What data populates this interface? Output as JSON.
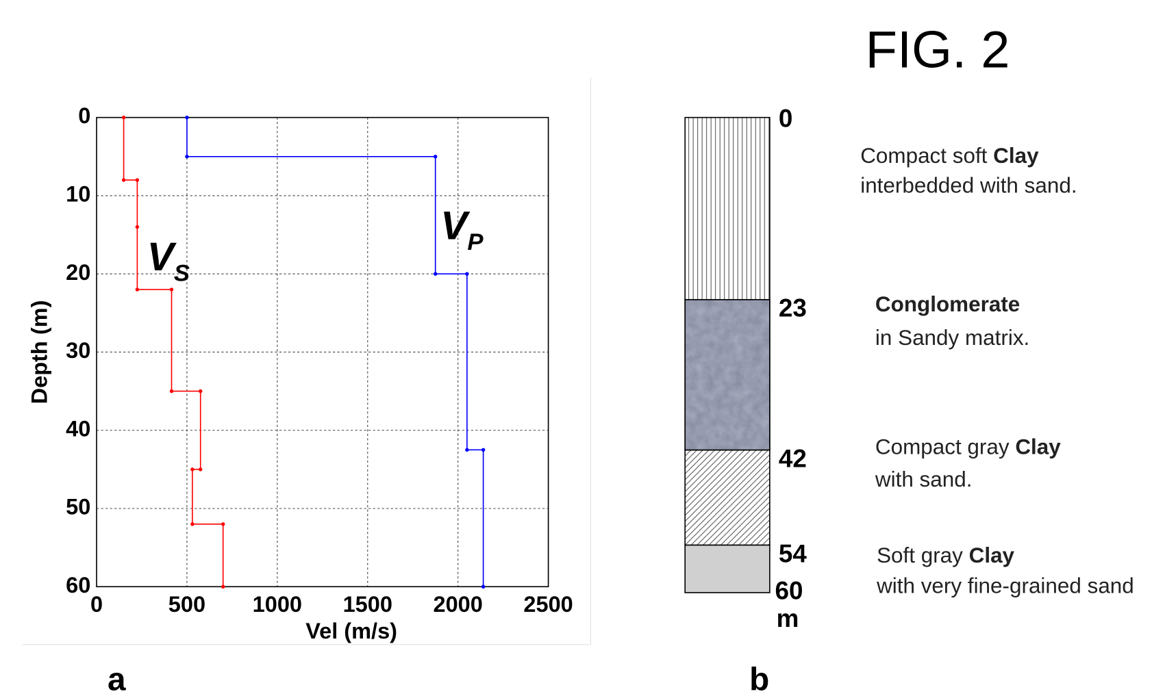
{
  "title": "FIG. 2",
  "panel_labels": [
    "a",
    "b"
  ],
  "chart_data": {
    "type": "line",
    "xlabel": "Vel (m/s)",
    "ylabel": "Depth (m)",
    "xlim": [
      0,
      2500
    ],
    "xticks": [
      0,
      500,
      1000,
      1500,
      2000,
      2500
    ],
    "ylim": [
      0,
      60
    ],
    "yticks": [
      0,
      10,
      20,
      30,
      40,
      50,
      60
    ],
    "y_inverted": true,
    "grid": true,
    "series": [
      {
        "name": "V",
        "subscript": "S",
        "color": "#ff0000",
        "x": [
          150,
          150,
          225,
          225,
          225,
          415,
          415,
          575,
          575,
          530,
          530,
          700,
          700
        ],
        "y": [
          0,
          8,
          8,
          14,
          22,
          22,
          35,
          35,
          45,
          45,
          52,
          52,
          60
        ]
      },
      {
        "name": "V",
        "subscript": "P",
        "color": "#0000ff",
        "x": [
          500,
          500,
          1875,
          1875,
          2050,
          2050,
          2140,
          2140
        ],
        "y": [
          0,
          5,
          5,
          20,
          20,
          42.5,
          42.5,
          60
        ]
      }
    ]
  },
  "column": {
    "unit": "m",
    "bottom": 60,
    "layers": [
      {
        "top": 0,
        "lines": [
          [
            {
              "text": "Compact soft ",
              "bold": false
            },
            {
              "text": "Clay",
              "bold": true
            }
          ],
          [
            {
              "text": "interbedded with sand.",
              "bold": false
            }
          ]
        ]
      },
      {
        "top": 23,
        "lines": [
          [
            {
              "text": "Conglomerate",
              "bold": true
            }
          ],
          [
            {
              "text": "in Sandy matrix.",
              "bold": false
            }
          ]
        ]
      },
      {
        "top": 42,
        "lines": [
          [
            {
              "text": "Compact gray ",
              "bold": false
            },
            {
              "text": "Clay",
              "bold": true
            }
          ],
          [
            {
              "text": "with sand.",
              "bold": false
            }
          ]
        ]
      },
      {
        "top": 54,
        "lines": [
          [
            {
              "text": "Soft gray ",
              "bold": false
            },
            {
              "text": "Clay",
              "bold": true
            }
          ],
          [
            {
              "text": "with very fine-grained sand",
              "bold": false
            }
          ]
        ]
      }
    ]
  }
}
